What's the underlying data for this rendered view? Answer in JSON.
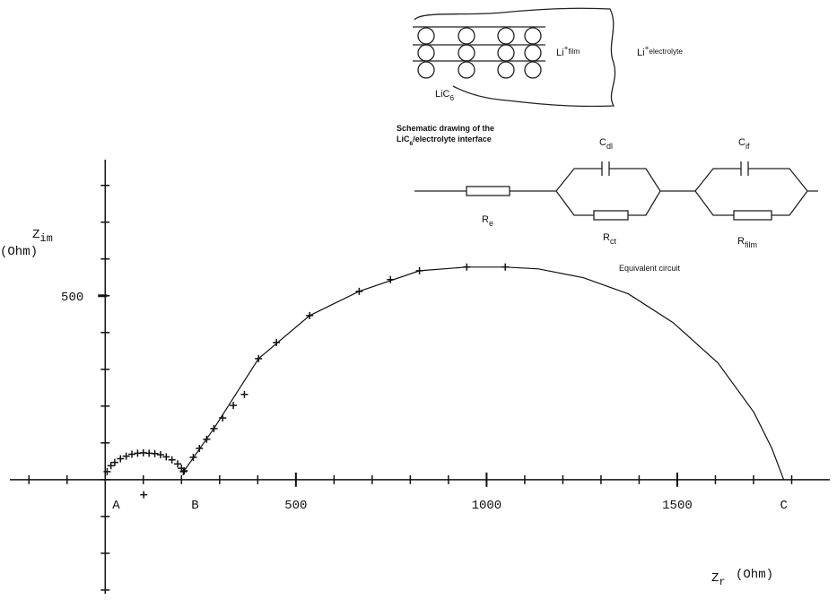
{
  "chart_data": {
    "type": "scatter",
    "xlim": [
      -250,
      1900
    ],
    "ylim": [
      -310,
      870
    ],
    "xticks": [
      500,
      1000,
      1500
    ],
    "yticks": [
      500
    ],
    "xminor_ticks": [
      -200,
      -100,
      0,
      100,
      200,
      300,
      400,
      500,
      600,
      700,
      800,
      900,
      1000,
      1100,
      1200,
      1300,
      1400,
      1500,
      1600,
      1700,
      1800
    ],
    "yminor_ticks": [
      -300,
      -200,
      -100,
      0,
      100,
      200,
      300,
      400,
      500,
      600,
      700,
      800
    ],
    "x_label": {
      "main": "Z",
      "sub": "r",
      "unit": "(Ohm)"
    },
    "y_label": {
      "main": "Z",
      "sub": "im",
      "unit": "(Ohm)"
    },
    "point_labels": [
      {
        "text": "A",
        "x": 0
      },
      {
        "text": "B",
        "x": 207
      },
      {
        "text": "C",
        "x": 1779
      }
    ],
    "series": [
      {
        "color": "#111",
        "marker": "plus",
        "x": [
          5,
          15,
          25,
          40,
          55,
          70,
          85,
          100,
          115,
          130,
          145,
          160,
          175,
          190,
          200,
          205,
          101,
          207,
          231,
          247,
          266,
          285,
          308,
          336,
          365,
          402,
          449,
          536,
          666,
          748,
          824,
          948,
          1049
        ],
        "values": [
          22,
          38,
          47,
          57,
          64,
          69,
          72,
          73,
          72,
          71,
          68,
          62,
          54,
          43,
          31,
          22,
          -41,
          24,
          61,
          85,
          110,
          139,
          168,
          202,
          232,
          329,
          373,
          446,
          512,
          544,
          568,
          578,
          578
        ]
      },
      {
        "color": "#111",
        "marker": "line",
        "x": [
          207,
          285,
          402,
          536,
          666,
          824,
          948,
          1049,
          1136,
          1254,
          1372,
          1489,
          1607,
          1701,
          1748,
          1779
        ],
        "values": [
          24,
          139,
          329,
          446,
          512,
          568,
          578,
          578,
          573,
          549,
          505,
          427,
          317,
          183,
          85,
          0
        ]
      }
    ]
  },
  "inset": {
    "li_film": {
      "main": "Li",
      "sup": "+",
      "sub": "film"
    },
    "li_electrolyte": {
      "main": "Li",
      "sup": "+",
      "sub": "electrolyte"
    },
    "lic6": {
      "main": "LiC",
      "sub": "6"
    },
    "caption": {
      "line1": "Schematic drawing of the",
      "main": "LiC",
      "sub": "6",
      "rest": "/electrolyte interface"
    },
    "cdl": {
      "main": "C",
      "sub": "dl"
    },
    "cif": {
      "main": "C",
      "sub": "if"
    },
    "re": {
      "main": "R",
      "sub": "e"
    },
    "rct": {
      "main": "R",
      "sub": "ct"
    },
    "rfilm": {
      "main": "R",
      "sub": "film"
    },
    "circuit_caption": "Equivalent circuit"
  }
}
